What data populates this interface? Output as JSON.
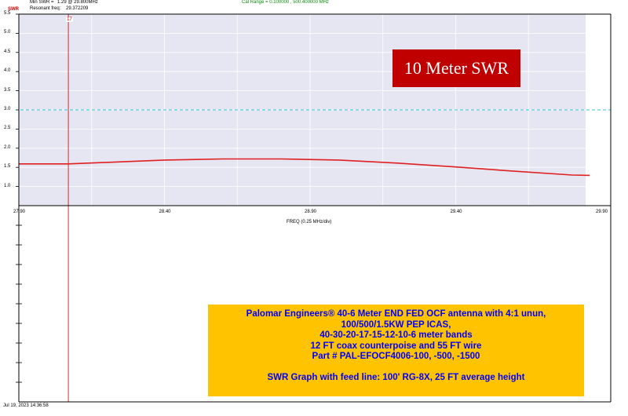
{
  "header": {
    "min_swr_label": "Min SWR =",
    "min_swr_value": "1.29 @ 29.800MHz",
    "resonant_label": "Resonant freq:",
    "resonant_value": "29.372209",
    "cal_range": "Cal Range = 0.100000 , 500.400000 MHz"
  },
  "swr_axis_label": "SWR",
  "marker_label": "17",
  "footer_timestamp": "Jul 19, 2023  14:36:58",
  "title_box": "10 Meter SWR",
  "info_lines": [
    "Palomar Engineers® 40-6 Meter END FED OCF antenna with 4:1 unun,",
    "100/500/1.5KW PEP ICAS,",
    "40-30-20-17-15-12-10-6 meter bands",
    "12 FT coax counterpoise and 55 FT wire",
    "Part # PAL-EFOCF4006-100, -500, -1500",
    "",
    "SWR Graph with feed line: 100' RG-8X, 25 FT average height"
  ],
  "colors": {
    "plot_bg": "#e6e6f2",
    "swr_line": "#e02020",
    "ref_line": "#33c8dd",
    "marker_line": "#c00000"
  },
  "chart_data": {
    "type": "line",
    "title": "10 Meter SWR",
    "xlabel": "FREQ (0.25 MHz/div)",
    "ylabel": "SWR",
    "xlim": [
      27.9,
      29.9
    ],
    "ylim": [
      0.5,
      5.5
    ],
    "x_ticks": [
      "27.90",
      "28.40",
      "28.90",
      "29.40",
      "29.90"
    ],
    "y_ticks": [
      "5.5",
      "5.0",
      "4.5",
      "4.0",
      "3.5",
      "3.0",
      "2.5",
      "2.0",
      "1.5",
      "1.0"
    ],
    "reference_line": 3.0,
    "marker_x": 28.07,
    "grid": true,
    "series": [
      {
        "x": [
          27.9,
          28.07,
          28.2,
          28.4,
          28.6,
          28.8,
          29.0,
          29.2,
          29.4,
          29.6,
          29.8,
          29.86
        ],
        "values": [
          1.59,
          1.59,
          1.63,
          1.69,
          1.72,
          1.72,
          1.69,
          1.61,
          1.51,
          1.4,
          1.3,
          1.29
        ]
      }
    ]
  }
}
